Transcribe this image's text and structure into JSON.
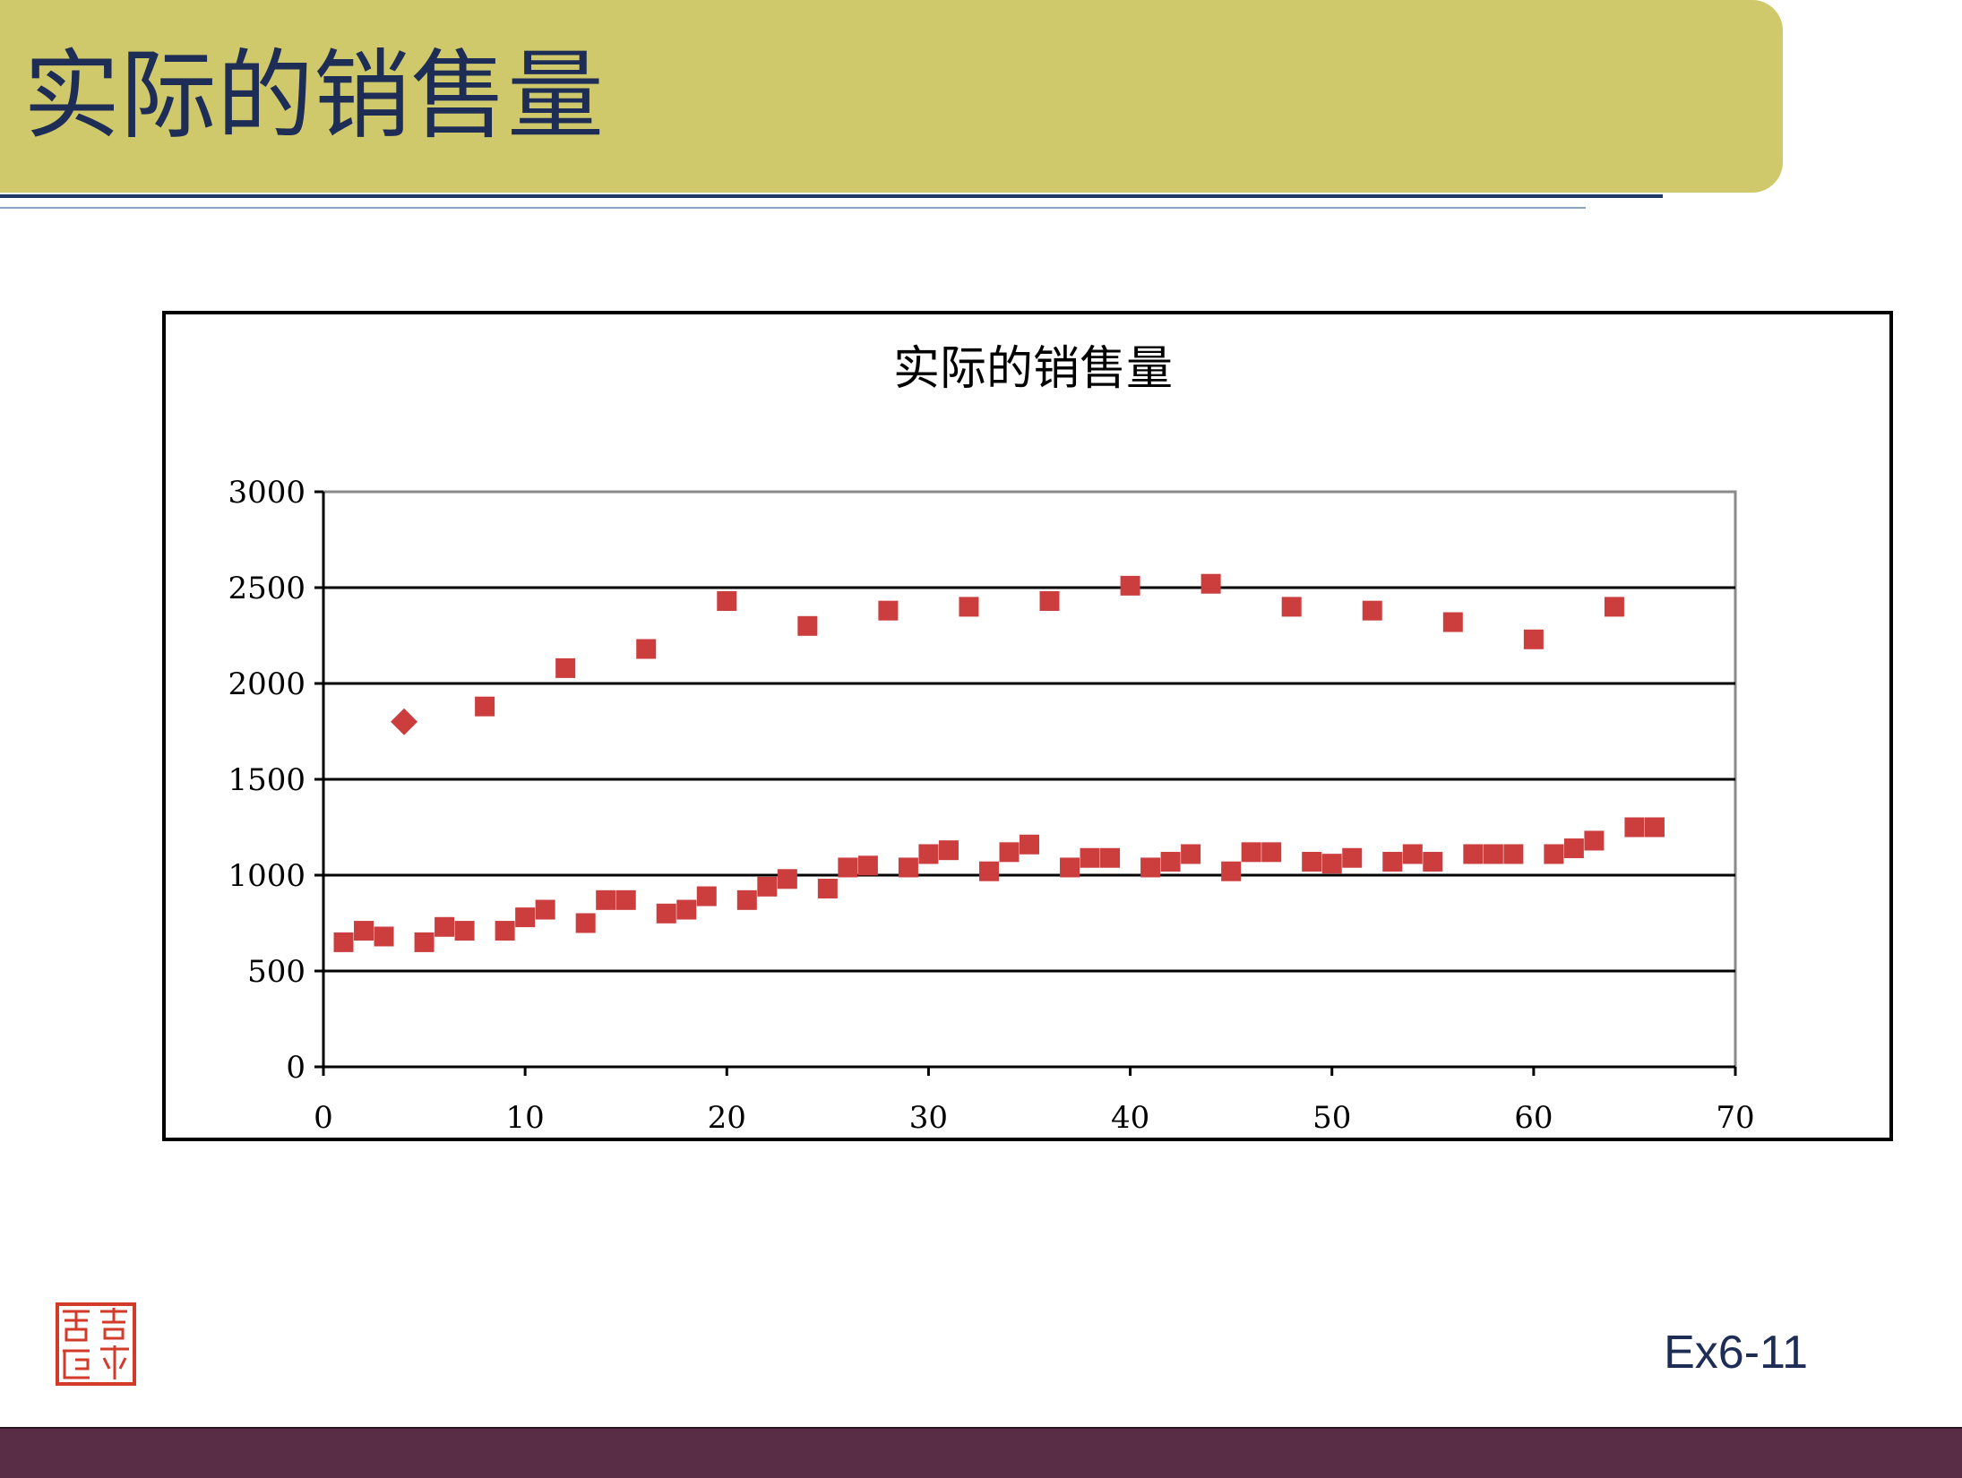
{
  "slide": {
    "title": "实际的销售量",
    "slide_number": "Ex6-11",
    "colors": {
      "title_bar": "#cfc96c",
      "title_text": "#1d2d55",
      "footer_bar": "#5a2d47",
      "marker": "#cc3e3e",
      "stamp": "#d23a2a"
    },
    "stamp_icon": "red-seal-stamp-icon"
  },
  "chart_data": {
    "type": "scatter",
    "title": "实际的销售量",
    "xlabel": "",
    "ylabel": "",
    "xlim": [
      0,
      70
    ],
    "ylim": [
      0,
      3000
    ],
    "x_ticks": [
      "0",
      "10",
      "20",
      "30",
      "40",
      "50",
      "60",
      "70"
    ],
    "y_ticks": [
      "0",
      "500",
      "1000",
      "1500",
      "2000",
      "2500",
      "3000"
    ],
    "grid": "horizontal major gridlines",
    "legend": "none",
    "series": [
      {
        "marker": "square",
        "points": [
          [
            1,
            650
          ],
          [
            2,
            710
          ],
          [
            3,
            680
          ],
          [
            5,
            650
          ],
          [
            6,
            730
          ],
          [
            7,
            710
          ],
          [
            9,
            710
          ],
          [
            10,
            780
          ],
          [
            11,
            820
          ],
          [
            13,
            750
          ],
          [
            14,
            870
          ],
          [
            15,
            870
          ],
          [
            17,
            800
          ],
          [
            18,
            820
          ],
          [
            19,
            890
          ],
          [
            21,
            870
          ],
          [
            22,
            940
          ],
          [
            23,
            980
          ],
          [
            25,
            930
          ],
          [
            26,
            1040
          ],
          [
            27,
            1050
          ],
          [
            29,
            1040
          ],
          [
            30,
            1110
          ],
          [
            31,
            1130
          ],
          [
            33,
            1020
          ],
          [
            34,
            1120
          ],
          [
            35,
            1160
          ],
          [
            37,
            1040
          ],
          [
            38,
            1090
          ],
          [
            39,
            1090
          ],
          [
            41,
            1040
          ],
          [
            42,
            1070
          ],
          [
            43,
            1110
          ],
          [
            45,
            1020
          ],
          [
            46,
            1120
          ],
          [
            47,
            1120
          ],
          [
            49,
            1070
          ],
          [
            50,
            1060
          ],
          [
            51,
            1090
          ],
          [
            53,
            1070
          ],
          [
            54,
            1110
          ],
          [
            55,
            1070
          ],
          [
            57,
            1110
          ],
          [
            58,
            1110
          ],
          [
            59,
            1110
          ],
          [
            61,
            1110
          ],
          [
            62,
            1140
          ],
          [
            63,
            1180
          ],
          [
            65,
            1250
          ],
          [
            66,
            1250
          ],
          [
            8,
            1880
          ],
          [
            12,
            2080
          ],
          [
            16,
            2180
          ],
          [
            20,
            2430
          ],
          [
            24,
            2300
          ],
          [
            28,
            2380
          ],
          [
            32,
            2400
          ],
          [
            36,
            2430
          ],
          [
            40,
            2510
          ],
          [
            44,
            2520
          ],
          [
            48,
            2400
          ],
          [
            52,
            2380
          ],
          [
            56,
            2320
          ],
          [
            60,
            2230
          ],
          [
            64,
            2400
          ]
        ]
      },
      {
        "marker": "diamond",
        "points": [
          [
            4,
            1800
          ]
        ]
      }
    ]
  }
}
